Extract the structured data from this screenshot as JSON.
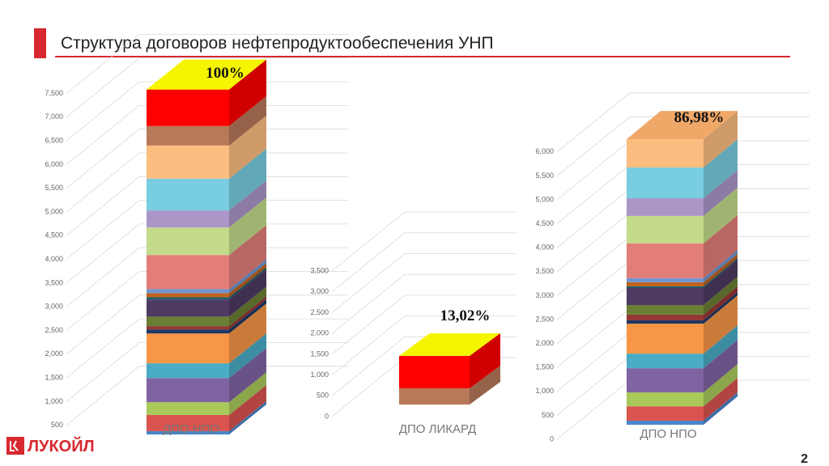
{
  "title": "Структура договоров нефтепродуктообеспечения УНП",
  "logo": "ЛУКОЙЛ",
  "page_number": "2",
  "chart_data": [
    {
      "type": "bar",
      "stacked": true,
      "categories": [
        "ДПО НПО"
      ],
      "annotation": "100%",
      "top_color": "#f5f500",
      "ylim": [
        0,
        7500
      ],
      "yticks": [
        500,
        {
          "value": 1000,
          "label": "1,000"
        },
        {
          "value": 1500,
          "label": "1,500"
        },
        {
          "value": 2000,
          "label": "2,000"
        },
        {
          "value": 2500,
          "label": "2,500"
        },
        {
          "value": 3000,
          "label": "3,000"
        },
        {
          "value": 3500,
          "label": "3,500"
        },
        {
          "value": 4000,
          "label": "4,000"
        },
        {
          "value": 4500,
          "label": "4,500"
        },
        {
          "value": 5000,
          "label": "5,000"
        },
        {
          "value": 5500,
          "label": "5,500"
        },
        {
          "value": 6000,
          "label": "6,000"
        },
        {
          "value": 6500,
          "label": "6,500"
        },
        {
          "value": 7000,
          "label": "7,000"
        },
        {
          "value": 7500,
          "label": "7,500"
        }
      ],
      "series": [
        {
          "color": "#4a86c8",
          "values": [
            70
          ]
        },
        {
          "color": "#d9534f",
          "values": [
            340
          ]
        },
        {
          "color": "#a9c95a",
          "values": [
            270
          ]
        },
        {
          "color": "#8064a2",
          "values": [
            510
          ]
        },
        {
          "color": "#4bacc6",
          "values": [
            310
          ]
        },
        {
          "color": "#f79646",
          "values": [
            630
          ]
        },
        {
          "color": "#1f3864",
          "values": [
            85
          ]
        },
        {
          "color": "#953735",
          "values": [
            70
          ]
        },
        {
          "color": "#6a7f33",
          "values": [
            200
          ]
        },
        {
          "color": "#4d3b62",
          "values": [
            360
          ]
        },
        {
          "color": "#215968",
          "values": [
            50
          ]
        },
        {
          "color": "#c0621e",
          "values": [
            85
          ]
        },
        {
          "color": "#7096cf",
          "values": [
            85
          ]
        },
        {
          "color": "#e27d78",
          "values": [
            720
          ]
        },
        {
          "color": "#c3db8a",
          "values": [
            580
          ]
        },
        {
          "color": "#ab96c8",
          "values": [
            360
          ]
        },
        {
          "color": "#78cde0",
          "values": [
            670
          ]
        },
        {
          "color": "#fbbd80",
          "values": [
            700
          ]
        },
        {
          "color": "#b8785a",
          "values": [
            410
          ]
        },
        {
          "color": "#ff0000",
          "values": [
            770
          ]
        }
      ]
    },
    {
      "type": "bar",
      "stacked": true,
      "categories": [
        "ДПО ЛИКАРД"
      ],
      "annotation": "13,02%",
      "top_color": "#f5f500",
      "ylim": [
        0,
        3500
      ],
      "yticks": [
        0,
        500,
        {
          "value": 1000,
          "label": "1,000"
        },
        {
          "value": 1500,
          "label": "1,500"
        },
        {
          "value": 2000,
          "label": "2,000"
        },
        {
          "value": 2500,
          "label": "2,500"
        },
        {
          "value": 3000,
          "label": "3,000"
        },
        {
          "value": 3500,
          "label": "3,500"
        }
      ],
      "series": [
        {
          "color": "#b8785a",
          "values": [
            390
          ]
        },
        {
          "color": "#ff0000",
          "values": [
            780
          ]
        }
      ]
    },
    {
      "type": "bar",
      "stacked": true,
      "categories": [
        "ДПО НПО"
      ],
      "annotation": "86,98%",
      "top_color": "#f0a868",
      "ylim": [
        0,
        6000
      ],
      "yticks": [
        0,
        500,
        {
          "value": 1000,
          "label": "1,000"
        },
        {
          "value": 1500,
          "label": "1,500"
        },
        {
          "value": 2000,
          "label": "2,000"
        },
        {
          "value": 2500,
          "label": "2,500"
        },
        {
          "value": 3000,
          "label": "3,000"
        },
        {
          "value": 3500,
          "label": "3,500"
        },
        {
          "value": 4000,
          "label": "4,000"
        },
        {
          "value": 4500,
          "label": "4,500"
        },
        {
          "value": 5000,
          "label": "5,000"
        },
        {
          "value": 5500,
          "label": "5,500"
        },
        {
          "value": 6000,
          "label": "6,000"
        }
      ],
      "series": [
        {
          "color": "#4a86c8",
          "values": [
            85
          ]
        },
        {
          "color": "#d9534f",
          "values": [
            300
          ]
        },
        {
          "color": "#a9c95a",
          "values": [
            290
          ]
        },
        {
          "color": "#8064a2",
          "values": [
            505
          ]
        },
        {
          "color": "#4bacc6",
          "values": [
            305
          ]
        },
        {
          "color": "#f79646",
          "values": [
            625
          ]
        },
        {
          "color": "#1f3864",
          "values": [
            70
          ]
        },
        {
          "color": "#953735",
          "values": [
            120
          ]
        },
        {
          "color": "#6a7f33",
          "values": [
            200
          ]
        },
        {
          "color": "#4d3b62",
          "values": [
            355
          ]
        },
        {
          "color": "#215968",
          "values": [
            35
          ]
        },
        {
          "color": "#c0621e",
          "values": [
            85
          ]
        },
        {
          "color": "#7096cf",
          "values": [
            85
          ]
        },
        {
          "color": "#e27d78",
          "values": [
            725
          ]
        },
        {
          "color": "#c3db8a",
          "values": [
            575
          ]
        },
        {
          "color": "#ab96c8",
          "values": [
            370
          ]
        },
        {
          "color": "#78cde0",
          "values": [
            640
          ]
        },
        {
          "color": "#fbbd80",
          "values": [
            590
          ]
        }
      ]
    }
  ]
}
